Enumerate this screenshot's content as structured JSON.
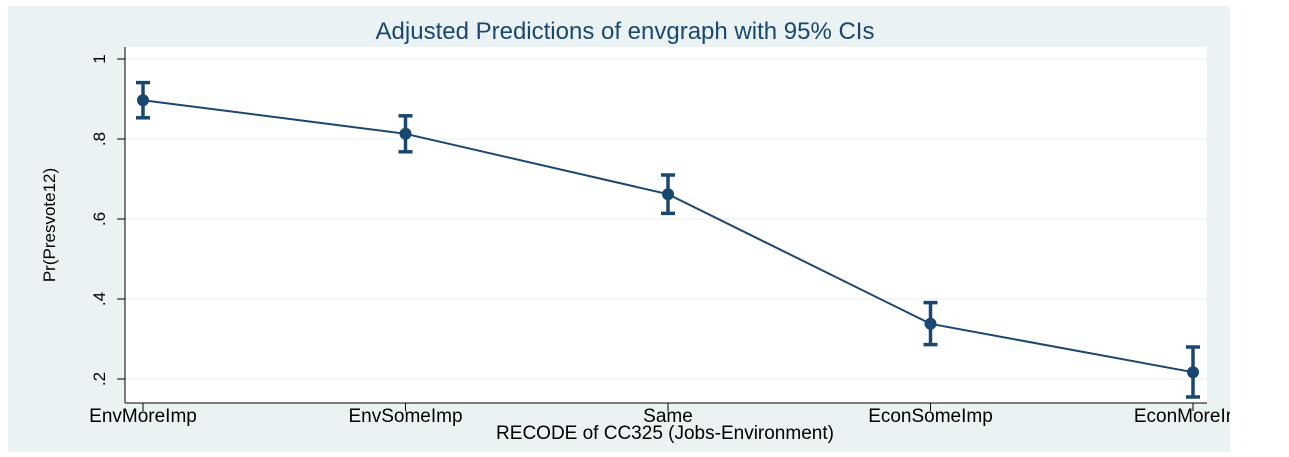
{
  "chart_data": {
    "type": "line",
    "title": "Adjusted Predictions of envgraph with 95% CIs",
    "xlabel": "RECODE of CC325 (Jobs-Environment)",
    "ylabel": "Pr(Presvote12)",
    "categories": [
      "EnvMoreImp",
      "EnvSomeImp",
      "Same",
      "EconSomeImp",
      "EconMoreImp"
    ],
    "yticks": [
      ".2",
      ".4",
      ".6",
      ".8",
      "1"
    ],
    "ylim": [
      0.14,
      1.03
    ],
    "grid": true,
    "legend": "none",
    "series": [
      {
        "values": [
          0.897,
          0.813,
          0.662,
          0.338,
          0.217
        ],
        "ci_low": [
          0.853,
          0.768,
          0.614,
          0.286,
          0.155
        ],
        "ci_high": [
          0.941,
          0.858,
          0.71,
          0.391,
          0.28
        ]
      }
    ],
    "colors": {
      "line": "#1a476f",
      "marker": "#1a476f",
      "title": "#1a476f",
      "plot_bg": "#ffffff",
      "outer_bg": "#eaf2f3",
      "grid": "#eaf2f3"
    }
  }
}
